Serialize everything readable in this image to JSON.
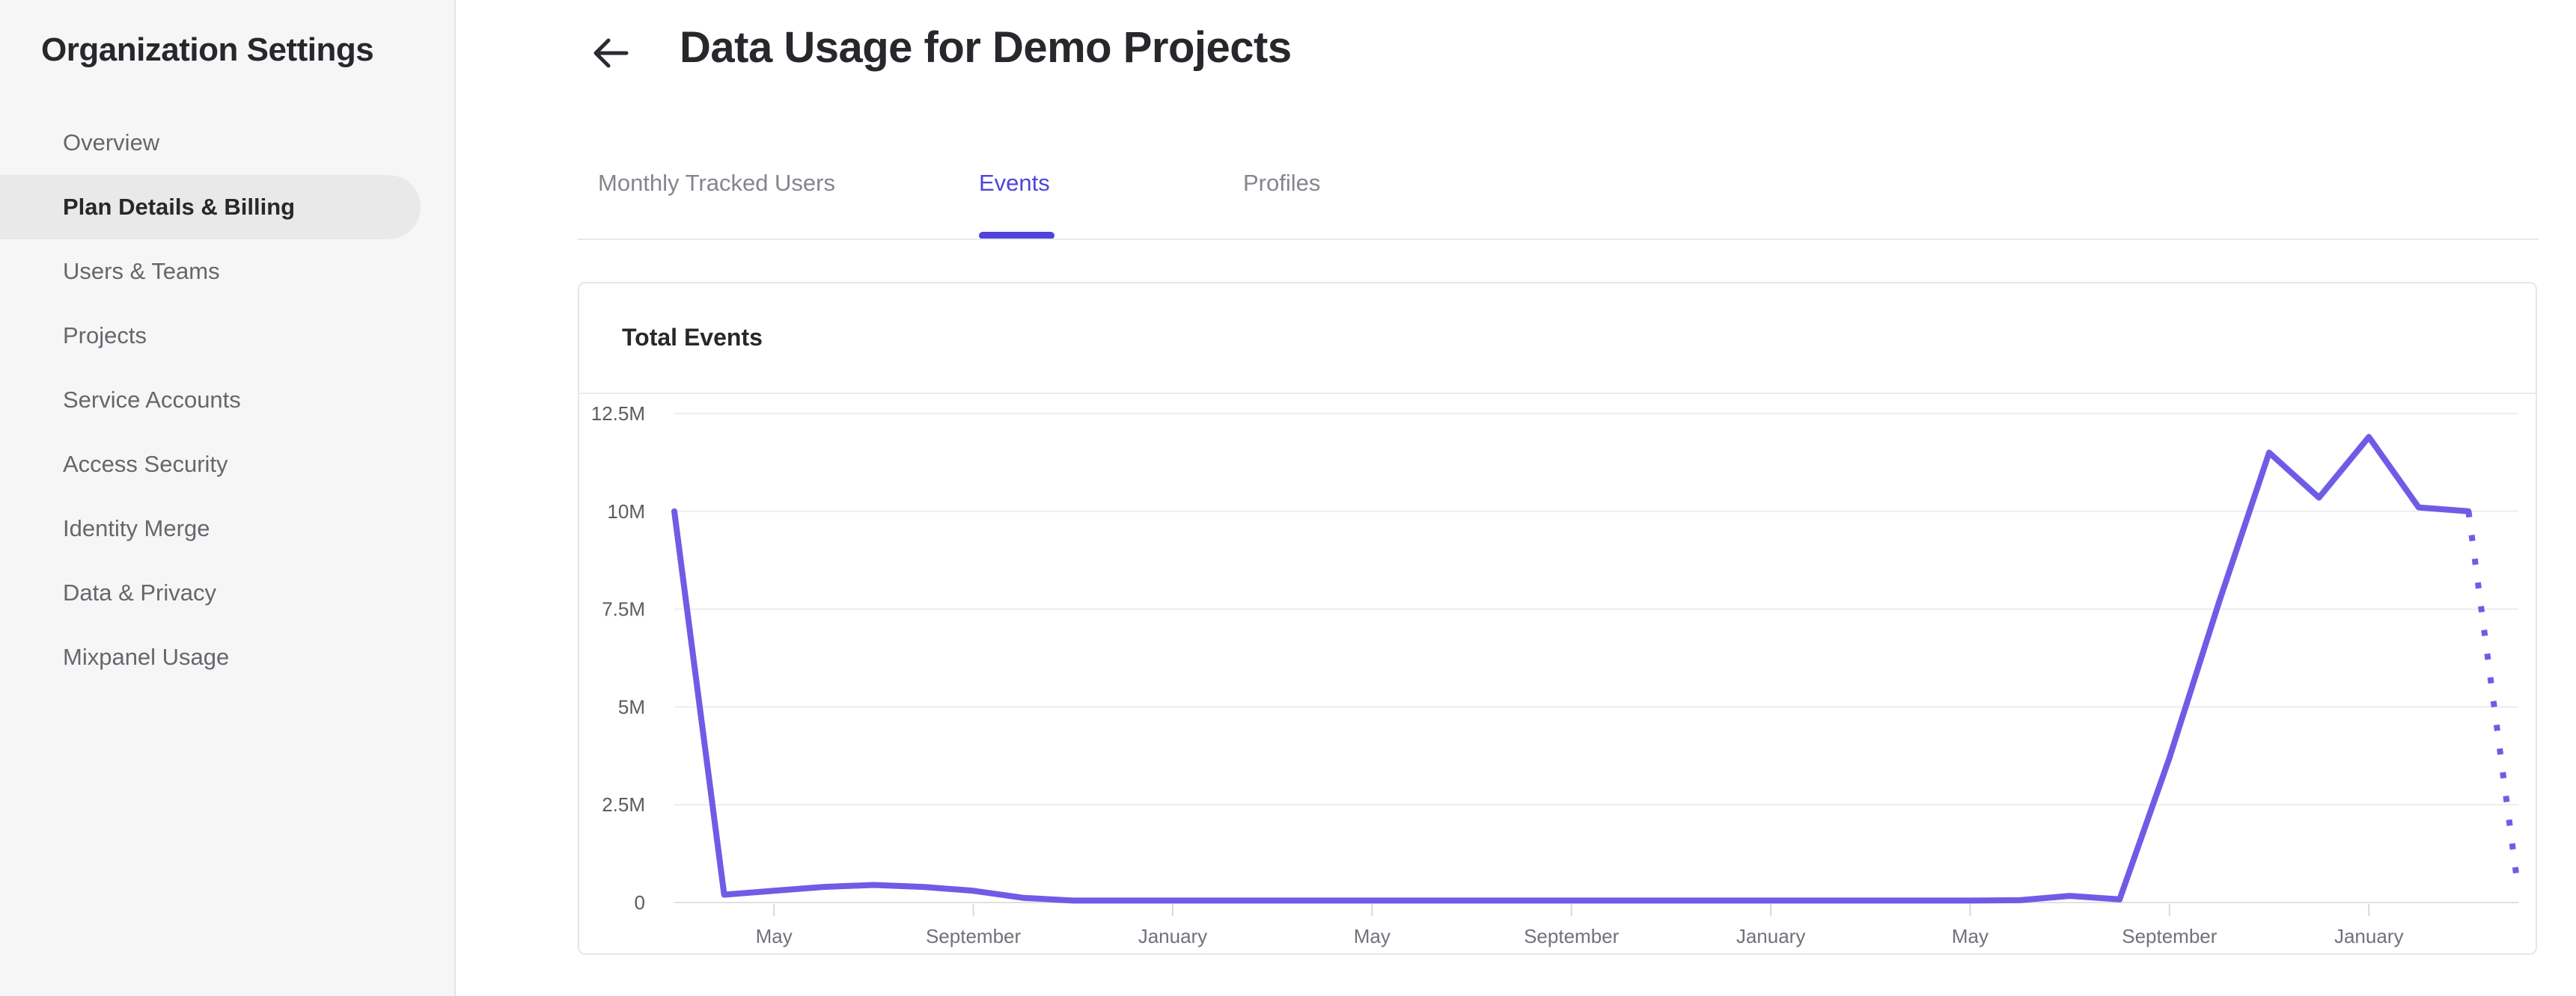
{
  "sidebar": {
    "title": "Organization Settings",
    "items": [
      {
        "label": "Overview",
        "selected": false
      },
      {
        "label": "Plan Details & Billing",
        "selected": true
      },
      {
        "label": "Users & Teams",
        "selected": false
      },
      {
        "label": "Projects",
        "selected": false
      },
      {
        "label": "Service Accounts",
        "selected": false
      },
      {
        "label": "Access Security",
        "selected": false
      },
      {
        "label": "Identity Merge",
        "selected": false
      },
      {
        "label": "Data & Privacy",
        "selected": false
      },
      {
        "label": "Mixpanel Usage",
        "selected": false
      }
    ]
  },
  "header": {
    "back_icon": "left-arrow",
    "title": "Data Usage for Demo Projects"
  },
  "tabs": {
    "items": [
      {
        "label": "Monthly Tracked Users",
        "active": false
      },
      {
        "label": "Events",
        "active": true
      },
      {
        "label": "Profiles",
        "active": false
      }
    ]
  },
  "card": {
    "title": "Total Events"
  },
  "colors": {
    "accent": "#4f44db",
    "line": "#6f5ce6",
    "grid": "#ededf0",
    "axis_line": "#e0e0e2",
    "tick": "#d9d9dc",
    "y_label": "#5b5b62",
    "x_label": "#71717a",
    "sidebar_bg": "#f6f6f7",
    "sidebar_selected_bg": "#e9e9ea",
    "text_dark": "#27272c",
    "text_gray": "#66666d"
  },
  "chart_data": {
    "type": "line",
    "title": "Total Events",
    "unit": "events per month (millions)",
    "cadence": "monthly",
    "series": [
      {
        "name": "Total Events",
        "values_millions": [
          10,
          0.2,
          0.3,
          0.4,
          0.45,
          0.4,
          0.3,
          0.12,
          0.05,
          0.05,
          0.05,
          0.05,
          0.05,
          0.05,
          0.05,
          0.05,
          0.05,
          0.05,
          0.05,
          0.05,
          0.05,
          0.05,
          0.05,
          0.05,
          0.05,
          0.05,
          0.05,
          0.06,
          0.17,
          0.08,
          3.7,
          7.7,
          11.5,
          10.35,
          11.9,
          10.1,
          10.0,
          0.3
        ]
      }
    ],
    "dotted_from_index": 36,
    "x_tick_indices": [
      2,
      6,
      10,
      14,
      18,
      22,
      26,
      30,
      34
    ],
    "x_tick_labels": [
      "May",
      "September",
      "January",
      "May",
      "September",
      "January",
      "May",
      "September",
      "January"
    ],
    "y_tick_labels": [
      "12.5M",
      "10M",
      "7.5M",
      "5M",
      "2.5M",
      "0"
    ],
    "y_tick_values_millions": [
      12.5,
      10,
      7.5,
      5,
      2.5,
      0
    ],
    "ylim_millions": [
      0,
      12.5
    ],
    "grid": "horizontal",
    "legend": "none"
  }
}
